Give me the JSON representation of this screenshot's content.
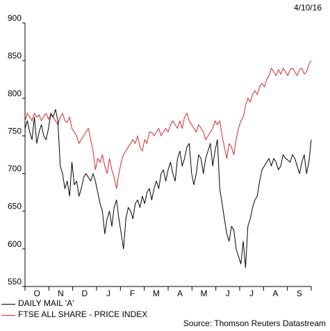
{
  "chart_data": {
    "type": "line",
    "date": "4/10/16",
    "source": "Source: Thomson Reuters Datastream",
    "ylim": [
      550,
      900
    ],
    "yticks": [
      550,
      600,
      650,
      700,
      750,
      800,
      850,
      900
    ],
    "month_labels": [
      "O",
      "N",
      "D",
      "J",
      "F",
      "M",
      "A",
      "M",
      "J",
      "J",
      "A",
      "S"
    ],
    "grid": false,
    "legend_position": "bottom-left",
    "series": [
      {
        "name": "DAILY MAIL 'A'",
        "color": "#000000",
        "values": [
          760,
          770,
          755,
          745,
          775,
          740,
          755,
          765,
          750,
          745,
          760,
          780,
          775,
          785,
          770,
          710,
          700,
          680,
          690,
          670,
          715,
          685,
          690,
          670,
          680,
          695,
          700,
          695,
          690,
          700,
          690,
          675,
          660,
          650,
          620,
          640,
          650,
          630,
          655,
          665,
          640,
          620,
          600,
          640,
          655,
          650,
          640,
          660,
          665,
          655,
          670,
          660,
          675,
          680,
          665,
          680,
          690,
          680,
          700,
          705,
          690,
          705,
          715,
          700,
          690,
          720,
          730,
          710,
          720,
          735,
          740,
          700,
          685,
          700,
          725,
          720,
          700,
          720,
          730,
          740,
          710,
          730,
          745,
          680,
          660,
          640,
          620,
          610,
          630,
          625,
          600,
          590,
          580,
          610,
          575,
          630,
          640,
          655,
          665,
          670,
          690,
          705,
          710,
          715,
          720,
          710,
          720,
          715,
          705,
          710,
          725,
          720,
          718,
          715,
          725,
          720,
          710,
          700,
          715,
          725,
          700,
          715,
          745
        ]
      },
      {
        "name": "FTSE ALL SHARE - PRICE INDEX",
        "color": "#d62728",
        "values": [
          770,
          780,
          775,
          770,
          780,
          775,
          778,
          770,
          776,
          780,
          772,
          778,
          775,
          770,
          765,
          775,
          780,
          770,
          768,
          775,
          760,
          755,
          750,
          740,
          745,
          750,
          755,
          760,
          745,
          730,
          705,
          720,
          715,
          725,
          710,
          700,
          720,
          705,
          695,
          680,
          700,
          715,
          725,
          730,
          735,
          740,
          745,
          740,
          750,
          735,
          730,
          745,
          740,
          755,
          755,
          750,
          755,
          760,
          750,
          755,
          760,
          755,
          765,
          770,
          765,
          760,
          770,
          760,
          775,
          780,
          770,
          765,
          760,
          755,
          765,
          760,
          755,
          745,
          750,
          755,
          760,
          770,
          765,
          770,
          750,
          735,
          720,
          740,
          735,
          725,
          745,
          760,
          770,
          775,
          790,
          800,
          795,
          805,
          810,
          805,
          815,
          820,
          815,
          825,
          830,
          840,
          835,
          830,
          838,
          832,
          840,
          835,
          830,
          838,
          840,
          835,
          830,
          838,
          840,
          832,
          835,
          845,
          850
        ]
      }
    ]
  }
}
